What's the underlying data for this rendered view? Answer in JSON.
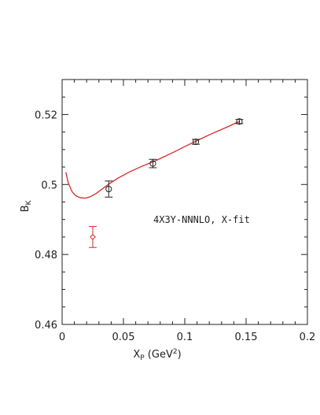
{
  "chart_data": {
    "type": "scatter",
    "xlabel": "X",
    "xlabel_sub": "P",
    "xlabel_units_pre": " (GeV",
    "xlabel_units_sup": "2",
    "xlabel_units_post": ")",
    "ylabel": "B",
    "ylabel_sub": "K",
    "xlim": [
      0,
      0.2
    ],
    "ylim": [
      0.46,
      0.53
    ],
    "xticks": [
      0,
      0.05,
      0.1,
      0.15,
      0.2
    ],
    "xtick_labels": [
      "0",
      "0.05",
      "0.1",
      "0.15",
      "0.2"
    ],
    "yticks": [
      0.46,
      0.48,
      0.5,
      0.52
    ],
    "ytick_labels": [
      "0.46",
      "0.48",
      "0.5",
      "0.52"
    ],
    "annotation": "4X3Y-NNNLO, X-fit",
    "series": [
      {
        "marker": "circle",
        "color": "#222222",
        "points": [
          {
            "x": 0.038,
            "y": 0.4987,
            "err": 0.0023
          },
          {
            "x": 0.074,
            "y": 0.506,
            "err": 0.0012
          },
          {
            "x": 0.109,
            "y": 0.5122,
            "err": 0.0007
          },
          {
            "x": 0.1445,
            "y": 0.518,
            "err": 0.0006
          }
        ]
      },
      {
        "marker": "diamond",
        "color": "#d62728",
        "points": [
          {
            "x": 0.025,
            "y": 0.485,
            "err": 0.003
          }
        ]
      }
    ],
    "fit_curve": {
      "color": "#d62728",
      "points": [
        [
          0.003,
          0.5035
        ],
        [
          0.005,
          0.5005
        ],
        [
          0.008,
          0.498
        ],
        [
          0.011,
          0.4968
        ],
        [
          0.015,
          0.4962
        ],
        [
          0.019,
          0.4961
        ],
        [
          0.023,
          0.4965
        ],
        [
          0.028,
          0.4975
        ],
        [
          0.033,
          0.4988
        ],
        [
          0.038,
          0.5001
        ],
        [
          0.045,
          0.5017
        ],
        [
          0.055,
          0.5036
        ],
        [
          0.065,
          0.5052
        ],
        [
          0.075,
          0.5066
        ],
        [
          0.09,
          0.5091
        ],
        [
          0.105,
          0.5117
        ],
        [
          0.12,
          0.5142
        ],
        [
          0.135,
          0.5165
        ],
        [
          0.145,
          0.5181
        ]
      ]
    }
  }
}
